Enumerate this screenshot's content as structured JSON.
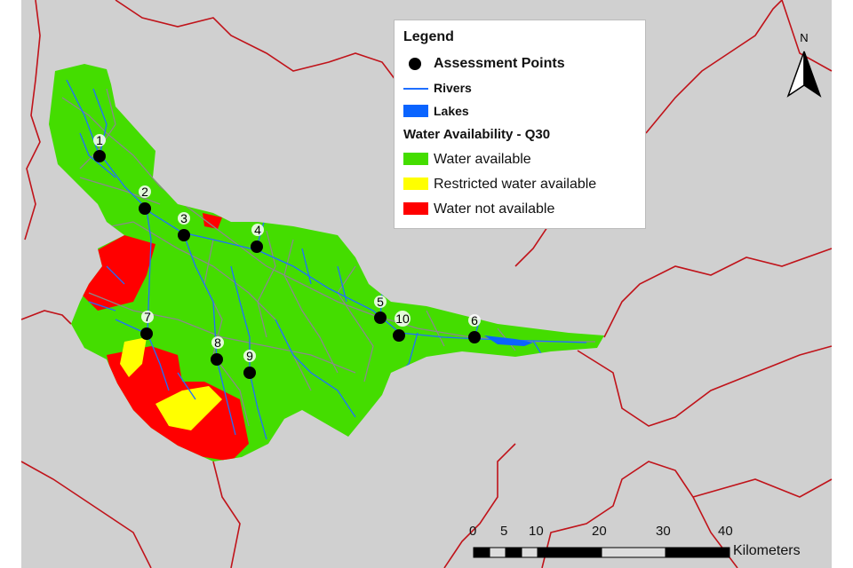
{
  "legend": {
    "title": "Legend",
    "items": [
      {
        "label": "Assessment Points",
        "symbol": "black-dot"
      },
      {
        "label": "Rivers",
        "symbol": "blue-line",
        "color": "#1f6fff"
      },
      {
        "label": "Lakes",
        "symbol": "blue-fill",
        "color": "#0a64ff"
      }
    ],
    "section_title": "Water Availability - Q30",
    "classes": [
      {
        "label": "Water available",
        "color": "#44dd00"
      },
      {
        "label": "Restricted water available",
        "color": "#ffff00"
      },
      {
        "label": "Water not available",
        "color": "#ff0000"
      }
    ]
  },
  "north_arrow": {
    "label": "N"
  },
  "scale_bar": {
    "ticks": [
      "0",
      "5",
      "10",
      "20",
      "30",
      "40"
    ],
    "unit": "Kilometers"
  },
  "assessment_points": [
    "1",
    "2",
    "3",
    "4",
    "5",
    "6",
    "7",
    "8",
    "9",
    "10"
  ],
  "colors": {
    "background": "#d0d0d0",
    "borders": "#c0131a",
    "subbasins": "#8a8a8a",
    "rivers": "#1f6fff"
  }
}
